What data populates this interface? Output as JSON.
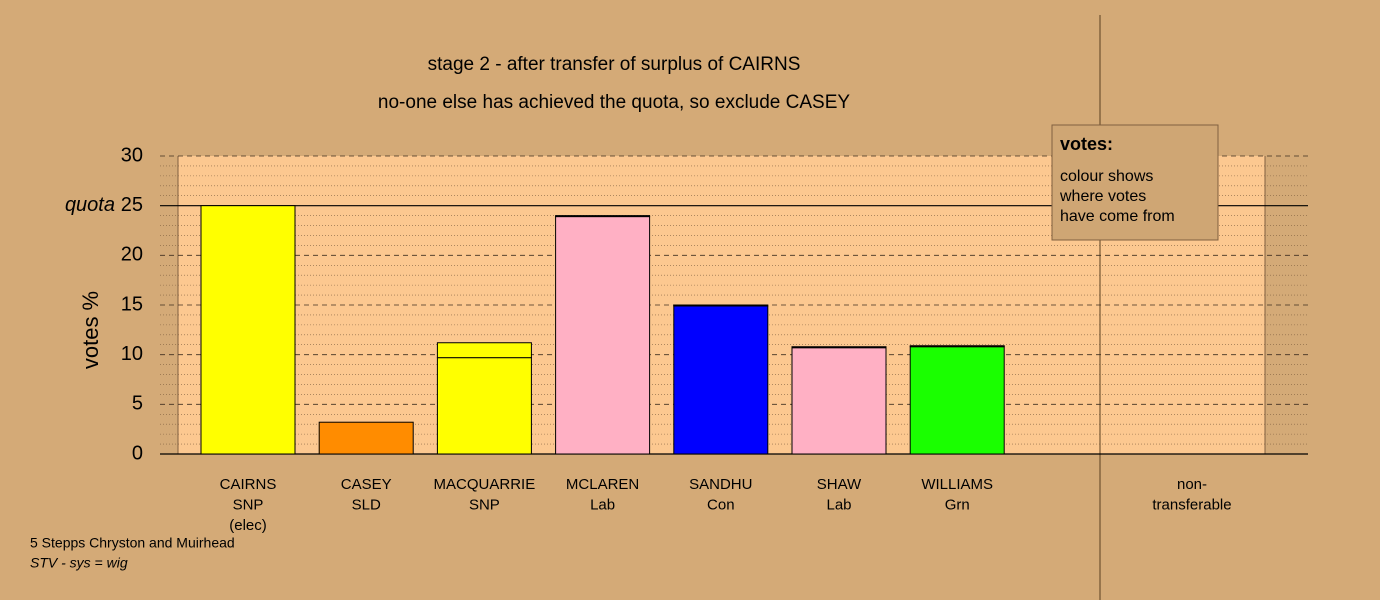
{
  "chart_data": {
    "type": "stacked_bar",
    "title": "stage 2 - after transfer of surplus of CAIRNS",
    "subtitle": "no-one else has achieved the quota, so exclude CASEY",
    "y_label": "votes %",
    "categories": [
      [
        "CAIRNS",
        "SNP",
        "(elec)"
      ],
      [
        "CASEY",
        "SLD"
      ],
      [
        "MACQUARRIE",
        "SNP"
      ],
      [
        "MCLAREN",
        "Lab"
      ],
      [
        "SANDHU",
        "Con"
      ],
      [
        "SHAW",
        "Lab"
      ],
      [
        "WILLIAMS",
        "Grn"
      ],
      [
        "non-",
        "transferable"
      ]
    ],
    "series": [
      {
        "colors": [
          "#ffff00",
          "#ff8c00",
          "#ffff00",
          "#ffb0c4",
          "#0000ff",
          "#ffb0c4",
          "#1aff00",
          "#ffff00"
        ],
        "values": [
          25,
          3.2,
          9.7,
          23.9,
          14.9,
          10.7,
          10.8,
          0
        ]
      },
      {
        "color": "#ffff00",
        "values": [
          0,
          0,
          1.5,
          0.1,
          0.1,
          0.1,
          0.1,
          0
        ]
      }
    ],
    "ylim": [
      0,
      30
    ],
    "yticks": [
      0,
      5,
      10,
      15,
      20,
      25,
      30
    ],
    "quota": 25,
    "quota_label": "quota",
    "grid": true,
    "legend": {
      "title": "votes:",
      "lines": [
        "colour shows",
        "where votes",
        "have come from"
      ]
    },
    "footnotes": [
      "5 Stepps Chryston and Muirhead",
      "STV - sys = wig"
    ]
  }
}
